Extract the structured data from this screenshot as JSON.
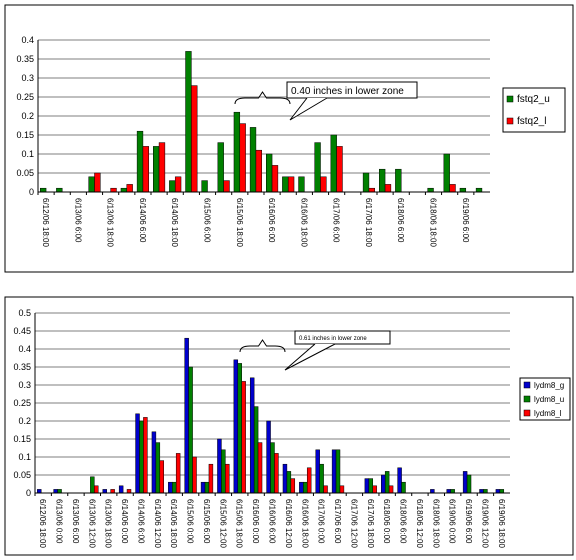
{
  "chart_data": [
    {
      "type": "bar",
      "categories": [
        "6/12/06 18:00",
        null,
        "6/13/06 6:00",
        null,
        "6/13/06 18:00",
        null,
        "6/14/06 6:00",
        null,
        "6/14/06 18:00",
        null,
        "6/15/06 6:00",
        null,
        "6/15/06 18:00",
        null,
        "6/16/06 6:00",
        null,
        "6/16/06 18:00",
        null,
        "6/17/06 6:00",
        null,
        "6/17/06 18:00",
        null,
        "6/18/06 6:00",
        null,
        "6/18/06 18:00",
        null,
        "6/19/06 6:00",
        null
      ],
      "series": [
        {
          "name": "fstq2_u",
          "color": "#008000",
          "values": [
            0.01,
            0.01,
            0,
            0.04,
            0,
            0.01,
            0.16,
            0.12,
            0.03,
            0.37,
            0.03,
            0.13,
            0.21,
            0.17,
            0.1,
            0.04,
            0.04,
            0.13,
            0.15,
            0,
            0.05,
            0.06,
            0.06,
            0,
            0.01,
            0.1,
            0.01,
            0.01
          ]
        },
        {
          "name": "fstq2_l",
          "color": "#ff0000",
          "values": [
            0,
            0,
            0,
            0.05,
            0.01,
            0.02,
            0.12,
            0.13,
            0.04,
            0.28,
            0,
            0.03,
            0.18,
            0.11,
            0.07,
            0.04,
            0,
            0.04,
            0.12,
            0,
            0.01,
            0.02,
            0,
            0,
            0,
            0.02,
            0,
            0
          ]
        }
      ],
      "ylim": [
        0,
        0.4
      ],
      "yticks": [
        0,
        0.05,
        0.1,
        0.15,
        0.2,
        0.25,
        0.3,
        0.35,
        0.4
      ],
      "grid": true,
      "annotation": "0.40 inches in lower zone",
      "legend": "right"
    },
    {
      "type": "bar",
      "categories": [
        "6/12/06 18:00",
        "6/13/06 0:00",
        "6/13/06 6:00",
        "6/13/06 12:00",
        "6/13/06 18:00",
        "6/14/06 0:00",
        "6/14/06 6:00",
        "6/14/06 12:00",
        "6/14/06 18:00",
        "6/15/06 0:00",
        "6/15/06 6:00",
        "6/15/06 12:00",
        "6/15/06 18:00",
        "6/16/06 0:00",
        "6/16/06 6:00",
        "6/16/06 12:00",
        "6/16/06 18:00",
        "6/17/06 0:00",
        "6/17/06 6:00",
        "6/17/06 12:00",
        "6/17/06 18:00",
        "6/18/06 0:00",
        "6/18/06 6:00",
        "6/18/06 12:00",
        "6/18/06 18:00",
        "6/19/06 0:00",
        "6/19/06 6:00",
        "6/19/06 12:00",
        "6/19/06 18:00"
      ],
      "series": [
        {
          "name": "lydm8_g",
          "color": "#0000cc",
          "values": [
            0.01,
            0.01,
            0,
            0,
            0.01,
            0.02,
            0.22,
            0.17,
            0.03,
            0.43,
            0.03,
            0.15,
            0.37,
            0.32,
            0.2,
            0.08,
            0.03,
            0.12,
            0.12,
            0,
            0.04,
            0.05,
            0.07,
            0,
            0.01,
            0.01,
            0.06,
            0.01,
            0.01
          ]
        },
        {
          "name": "lydm8_u",
          "color": "#008000",
          "values": [
            0,
            0.01,
            0,
            0.045,
            0,
            0,
            0.2,
            0.14,
            0.03,
            0.35,
            0.03,
            0.12,
            0.36,
            0.24,
            0.14,
            0.06,
            0.03,
            0.08,
            0.12,
            0,
            0.04,
            0.06,
            0.03,
            0,
            0,
            0.01,
            0.05,
            0.01,
            0.01
          ]
        },
        {
          "name": "lydm8_l",
          "color": "#ff0000",
          "values": [
            0,
            0,
            0,
            0.02,
            0.01,
            0.01,
            0.21,
            0.09,
            0.11,
            0.1,
            0.08,
            0.08,
            0.31,
            0.14,
            0.11,
            0.04,
            0.07,
            0.02,
            0.02,
            0,
            0.02,
            0.02,
            0,
            0,
            0,
            0,
            0,
            0,
            0
          ]
        }
      ],
      "ylim": [
        0,
        0.5
      ],
      "yticks": [
        0,
        0.05,
        0.1,
        0.15,
        0.2,
        0.25,
        0.3,
        0.35,
        0.4,
        0.45,
        0.5
      ],
      "grid": true,
      "annotation": "0.61 inches in lower zone",
      "legend": "right"
    }
  ]
}
